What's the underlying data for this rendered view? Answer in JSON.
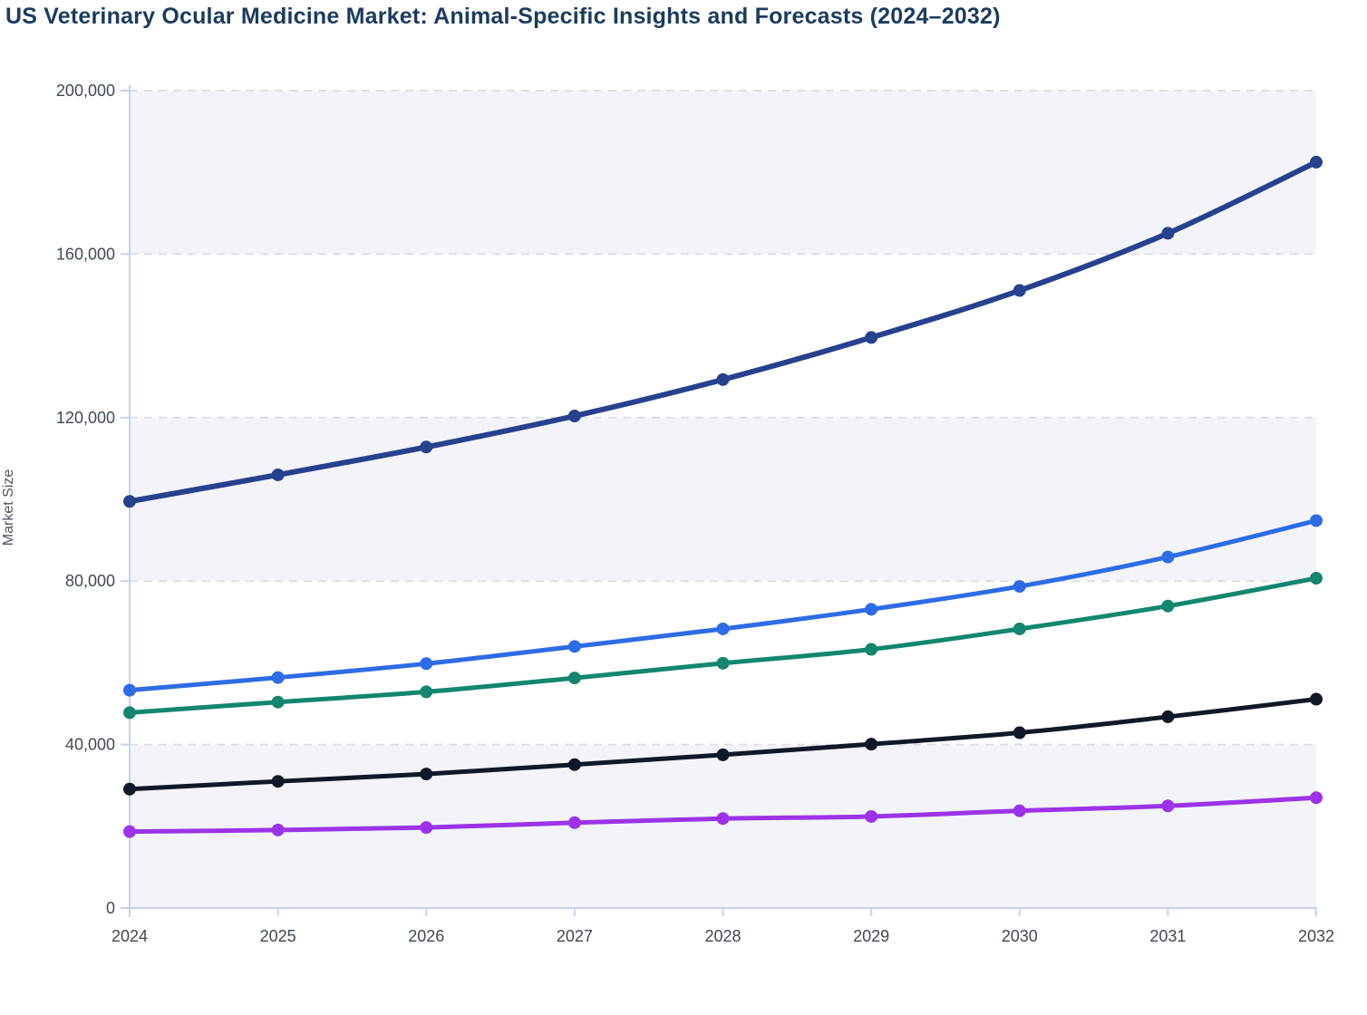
{
  "title": "US Veterinary Ocular Medicine Market: Animal-Specific Insights and Forecasts (2024–2032)",
  "y_axis_title": "Market Size",
  "chart_data": {
    "type": "line",
    "title": "US Veterinary Ocular Medicine Market: Animal-Specific Insights and Forecasts (2024–2032)",
    "xlabel": "",
    "ylabel": "Market Size",
    "x": [
      2024,
      2025,
      2026,
      2027,
      2028,
      2029,
      2030,
      2031,
      2032
    ],
    "x_tick_labels": [
      "2024",
      "2025",
      "2026",
      "2027",
      "2028",
      "2029",
      "2030",
      "2031",
      "2032"
    ],
    "ylim": [
      0,
      200000
    ],
    "y_ticks": [
      0,
      40000,
      80000,
      120000,
      160000,
      200000
    ],
    "y_tick_labels": [
      "0",
      "40,000",
      "80,000",
      "120,000",
      "160,000",
      "200,000"
    ],
    "grid": "horizontal-dashed",
    "legend": "none",
    "markers": true,
    "series": [
      {
        "name": "navy",
        "color": "#27418f",
        "values": [
          99500,
          106000,
          112800,
          120400,
          129300,
          139600,
          151100,
          165100,
          182500
        ]
      },
      {
        "name": "blue",
        "color": "#2e6ce5",
        "values": [
          53300,
          56400,
          59800,
          64000,
          68300,
          73100,
          78700,
          85900,
          94800
        ]
      },
      {
        "name": "green",
        "color": "#12866e",
        "values": [
          47800,
          50400,
          52900,
          56300,
          59900,
          63300,
          68300,
          73900,
          80700
        ]
      },
      {
        "name": "black",
        "color": "#111827",
        "values": [
          29100,
          31000,
          32800,
          35100,
          37500,
          40100,
          42900,
          46800,
          51100
        ]
      },
      {
        "name": "purple",
        "color": "#9c33e8",
        "values": [
          18700,
          19100,
          19700,
          20900,
          21900,
          22400,
          23800,
          25000,
          27000
        ]
      }
    ],
    "colors": {
      "band_fill": "#f2f4f9",
      "gridline": "#dde1e7",
      "axis_line": "#c7d0f0",
      "tick_label": "#3f4956",
      "title": "#1c3b5f",
      "axis_title": "#4b5563"
    }
  }
}
